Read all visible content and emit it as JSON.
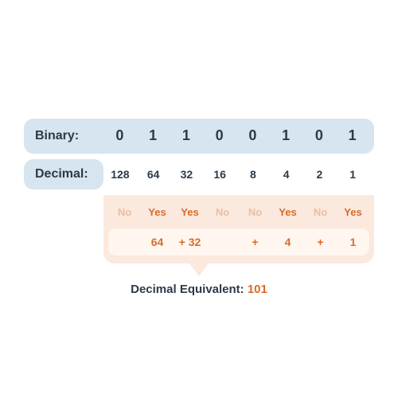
{
  "labels": {
    "binary": "Binary:",
    "decimal": "Decimal:",
    "resultLabel": "Decimal Equivalent:",
    "resultValue": "101"
  },
  "rows": {
    "binary": [
      "0",
      "1",
      "1",
      "0",
      "0",
      "1",
      "0",
      "1"
    ],
    "weights": [
      "128",
      "64",
      "32",
      "16",
      "8",
      "4",
      "2",
      "1"
    ],
    "yesno": [
      "No",
      "Yes",
      "Yes",
      "No",
      "No",
      "Yes",
      "No",
      "Yes"
    ],
    "sum": [
      "",
      "64",
      "+ 32",
      "",
      "+",
      "4",
      "+",
      "1"
    ]
  },
  "styling": {
    "type": "infographic",
    "colors": {
      "background": "#ffffff",
      "blueRow": "#d6e5ef",
      "textDark": "#2b3a4a",
      "orangeBox": "#fbe9dd",
      "orangeInner": "#fff6f0",
      "orangeText": "#d96b2b",
      "orangeFaded": "#e8bfa3"
    },
    "gridColumns": 8,
    "labelColumnWidth": 100,
    "borderRadius": 12,
    "fonts": {
      "labelSize": 16,
      "binarySize": 18,
      "weightSize": 14,
      "yesnoSize": 13,
      "sumSize": 14,
      "resultSize": 15,
      "weight": 800
    }
  }
}
